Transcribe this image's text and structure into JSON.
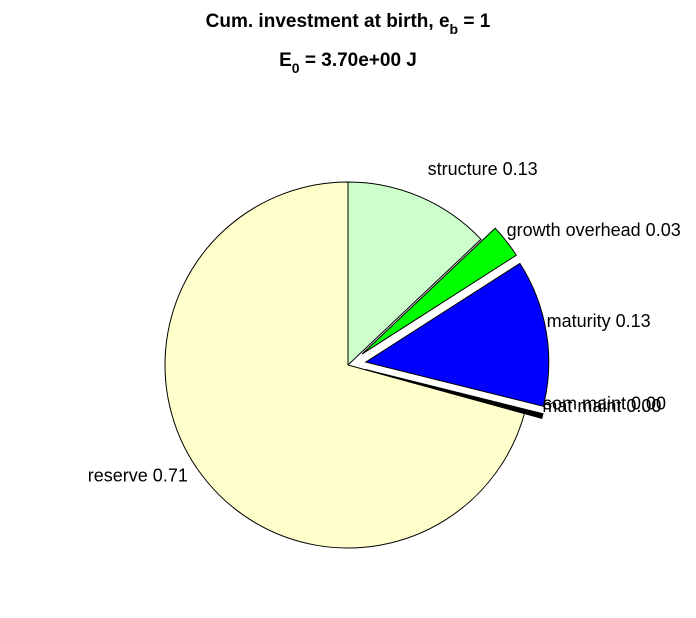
{
  "chart_data": {
    "type": "pie",
    "title": {
      "text": "Cum. investment at birth, e",
      "sub": "b",
      "after": " = 1"
    },
    "subtitle": {
      "text": "E",
      "sub": "0",
      "after": " = 3.70e+00 J"
    },
    "categories": [
      "structure 0.13",
      "growth overhead 0.03",
      "maturity 0.13",
      "som maint 0.00",
      "mat maint 0.00",
      "reserve 0.71"
    ],
    "values": [
      0.13,
      0.03,
      0.13,
      0.002,
      0.002,
      0.71
    ],
    "colors": [
      "#ccffcc",
      "#00ff00",
      "#0000ff",
      "#000000",
      "#000000",
      "#ffffcc"
    ],
    "explode": [
      false,
      true,
      true,
      true,
      true,
      false
    ]
  }
}
